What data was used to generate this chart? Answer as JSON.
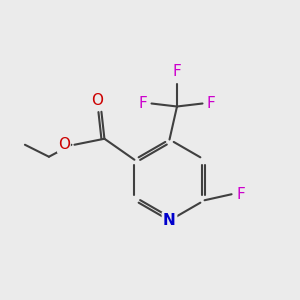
{
  "background_color": "#ebebeb",
  "bond_color": "#404040",
  "bond_width": 1.5,
  "atom_colors": {
    "C": "#404040",
    "N": "#0000cc",
    "O": "#cc0000",
    "F": "#cc00cc"
  },
  "font_size": 11,
  "font_size_small": 10
}
